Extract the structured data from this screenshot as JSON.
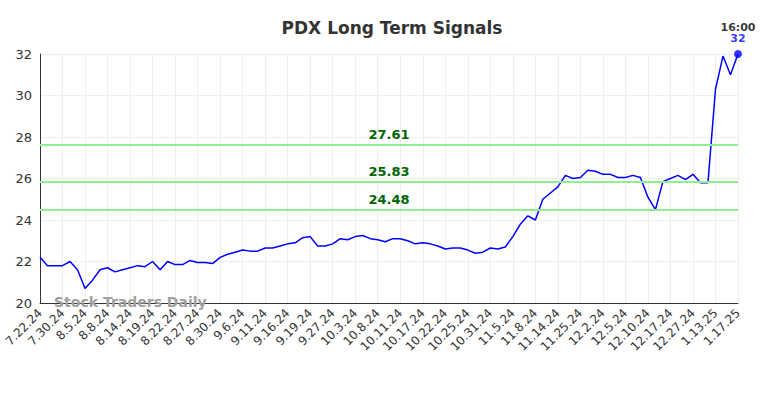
{
  "chart_data": {
    "type": "line",
    "title": "PDX Long Term Signals",
    "watermark": "Stock Traders Daily",
    "end_label": "16:00",
    "color": "#0000ff",
    "grid": true,
    "ylim": [
      20,
      32
    ],
    "yticks": [
      20,
      22,
      24,
      26,
      28,
      30,
      32
    ],
    "signals": [
      27.61,
      25.83,
      24.48
    ],
    "signal_color": "#90ee90",
    "signal_label_color": "#006400",
    "categories": [
      "7.22.24",
      null,
      null,
      "7.30.24",
      null,
      null,
      "8.5.24",
      null,
      null,
      "8.8.24",
      null,
      null,
      "8.14.24",
      null,
      null,
      "8.19.24",
      null,
      null,
      "8.22.24",
      null,
      null,
      "8.27.24",
      null,
      null,
      "8.30.24",
      null,
      null,
      "9.6.24",
      null,
      null,
      "9.11.24",
      null,
      null,
      "9.16.24",
      null,
      null,
      "9.19.24",
      null,
      null,
      "9.27.24",
      null,
      null,
      "10.3.24",
      null,
      null,
      "10.8.24",
      null,
      null,
      "10.11.24",
      null,
      null,
      "10.17.24",
      null,
      null,
      "10.22.24",
      null,
      null,
      "10.25.24",
      null,
      null,
      "10.31.24",
      null,
      null,
      "11.5.24",
      null,
      null,
      "11.8.24",
      null,
      null,
      "11.14.24",
      null,
      null,
      "11.25.24",
      null,
      null,
      "12.2.24",
      null,
      null,
      "12.5.24",
      null,
      null,
      "12.10.24",
      null,
      null,
      "12.17.24",
      null,
      null,
      "12.27.24",
      null,
      null,
      "1.13.25",
      null,
      null,
      "1.17.25"
    ],
    "values": [
      22.2,
      21.8,
      21.8,
      21.8,
      22.0,
      21.6,
      20.7,
      21.1,
      21.6,
      21.7,
      21.5,
      21.6,
      21.7,
      21.8,
      21.75,
      22.0,
      21.6,
      22.0,
      21.85,
      21.85,
      22.05,
      21.95,
      21.95,
      21.9,
      22.2,
      22.35,
      22.45,
      22.55,
      22.5,
      22.5,
      22.65,
      22.65,
      22.75,
      22.85,
      22.9,
      23.15,
      23.2,
      22.75,
      22.75,
      22.85,
      23.1,
      23.05,
      23.2,
      23.25,
      23.1,
      23.05,
      22.95,
      23.1,
      23.1,
      23.0,
      22.85,
      22.9,
      22.85,
      22.75,
      22.6,
      22.65,
      22.65,
      22.55,
      22.4,
      22.45,
      22.65,
      22.6,
      22.7,
      23.2,
      23.8,
      24.2,
      24.0,
      25.0,
      25.3,
      25.6,
      26.15,
      26.0,
      26.05,
      26.4,
      26.35,
      26.2,
      26.2,
      26.05,
      26.05,
      26.15,
      26.05,
      25.1,
      24.5,
      25.85,
      26.0,
      26.15,
      25.95,
      26.2,
      25.8,
      25.8,
      30.3,
      31.9,
      31.0,
      32.0
    ]
  }
}
